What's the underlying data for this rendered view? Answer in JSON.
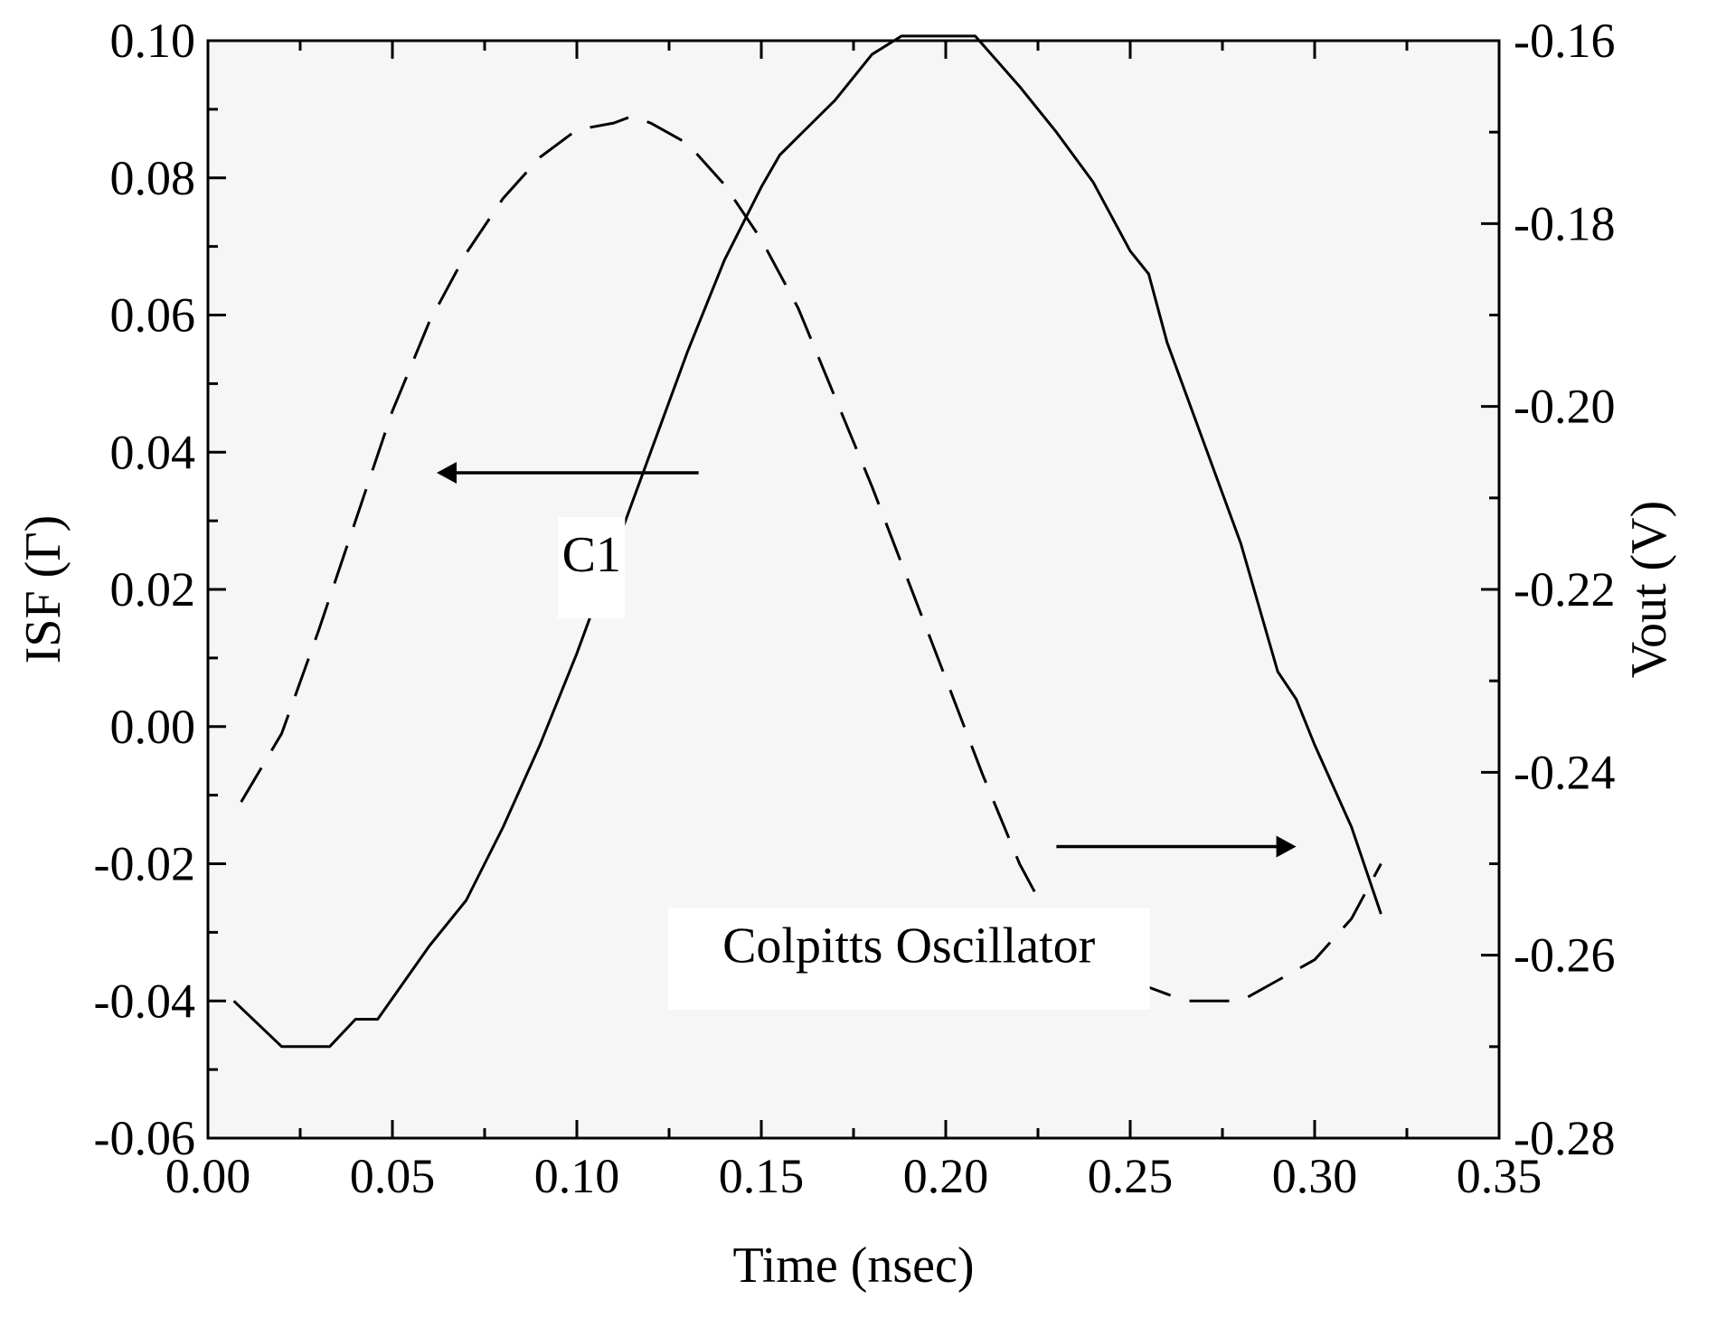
{
  "chart_data": {
    "type": "line",
    "title": "",
    "xlabel": "Time (nsec)",
    "ylabel_left": "ISF (Γ)",
    "ylabel_right": "Vout (V)",
    "xlim": [
      0.0,
      0.35
    ],
    "ylim_left": [
      -0.06,
      0.1
    ],
    "ylim_right": [
      -0.28,
      -0.16
    ],
    "x_ticks": [
      "0.00",
      "0.05",
      "0.10",
      "0.15",
      "0.20",
      "0.25",
      "0.30",
      "0.35"
    ],
    "y_left_ticks": [
      "-0.06",
      "-0.04",
      "-0.02",
      "0.00",
      "0.02",
      "0.04",
      "0.06",
      "0.08",
      "0.10"
    ],
    "y_right_ticks": [
      "-0.28",
      "-0.26",
      "-0.24",
      "-0.22",
      "-0.20",
      "-0.18",
      "-0.16"
    ],
    "grid": false,
    "background": "#f6f6f6",
    "line_color": "#000000",
    "series": [
      {
        "axis": "left",
        "style": "dashed",
        "x": [
          0.009,
          0.02,
          0.03,
          0.04,
          0.05,
          0.06,
          0.07,
          0.08,
          0.09,
          0.1,
          0.11,
          0.115,
          0.12,
          0.13,
          0.14,
          0.15,
          0.16,
          0.17,
          0.18,
          0.19,
          0.2,
          0.21,
          0.22,
          0.23,
          0.24,
          0.25,
          0.26,
          0.265,
          0.27,
          0.28,
          0.29,
          0.3,
          0.31,
          0.318
        ],
        "y": [
          -0.011,
          -0.001,
          0.014,
          0.03,
          0.046,
          0.059,
          0.069,
          0.077,
          0.083,
          0.087,
          0.088,
          0.089,
          0.088,
          0.085,
          0.079,
          0.071,
          0.061,
          0.048,
          0.035,
          0.021,
          0.007,
          -0.007,
          -0.02,
          -0.03,
          -0.035,
          -0.037,
          -0.039,
          -0.04,
          -0.04,
          -0.04,
          -0.037,
          -0.034,
          -0.028,
          -0.02
        ]
      },
      {
        "axis": "right",
        "style": "solid",
        "x": [
          0.007,
          0.02,
          0.033,
          0.04,
          0.046,
          0.06,
          0.07,
          0.08,
          0.09,
          0.1,
          0.11,
          0.12,
          0.13,
          0.14,
          0.15,
          0.155,
          0.16,
          0.17,
          0.18,
          0.188,
          0.208,
          0.22,
          0.23,
          0.24,
          0.25,
          0.255,
          0.26,
          0.27,
          0.28,
          0.29,
          0.295,
          0.3,
          0.31,
          0.318
        ],
        "y": [
          -0.265,
          -0.27,
          -0.27,
          -0.267,
          -0.267,
          -0.259,
          -0.254,
          -0.246,
          -0.237,
          -0.227,
          -0.216,
          -0.205,
          -0.194,
          -0.184,
          -0.176,
          -0.1725,
          -0.1705,
          -0.1665,
          -0.1615,
          -0.1595,
          -0.1595,
          -0.165,
          -0.17,
          -0.1755,
          -0.183,
          -0.1855,
          -0.193,
          -0.204,
          -0.215,
          -0.229,
          -0.232,
          -0.237,
          -0.246,
          -0.2555
        ]
      }
    ],
    "annotations": [
      {
        "text": "C1",
        "x": 0.104,
        "y": 0.025,
        "axis": "left"
      },
      {
        "text": "Colpitts Oscillator",
        "x": 0.19,
        "y": -0.032,
        "axis": "left"
      }
    ],
    "arrows": [
      {
        "direction": "left",
        "axis": "left",
        "from": [
          0.133,
          0.037
        ],
        "to": [
          0.062,
          0.037
        ]
      },
      {
        "direction": "right",
        "axis": "left",
        "from": [
          0.23,
          -0.0175
        ],
        "to": [
          0.295,
          -0.0175
        ]
      }
    ]
  }
}
